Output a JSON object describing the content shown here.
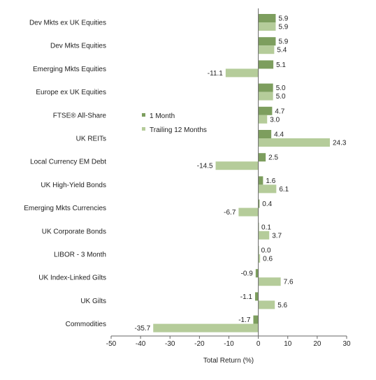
{
  "chart_data": {
    "type": "bar",
    "orientation": "horizontal",
    "categories": [
      "Dev Mkts ex UK Equities",
      "Dev Mkts Equities",
      "Emerging Mkts Equities",
      "Europe ex UK Equities",
      "FTSE® All-Share",
      "UK REITs",
      "Local Currency EM Debt",
      "UK High-Yield Bonds",
      "Emerging Mkts Currencies",
      "UK Corporate Bonds",
      "LIBOR - 3 Month",
      "UK Index-Linked Gilts",
      "UK Gilts",
      "Commodities"
    ],
    "series": [
      {
        "name": "1 Month",
        "color": "#7d9e5e",
        "values": [
          5.9,
          5.9,
          5.1,
          5.0,
          4.7,
          4.4,
          2.5,
          1.6,
          0.4,
          0.1,
          0.0,
          -0.9,
          -1.1,
          -1.7
        ],
        "labels": [
          "5.9",
          "5.9",
          "5.1",
          "5.0",
          "4.7",
          "4.4",
          "2.5",
          "1.6",
          "0.4",
          "0.1",
          "0.0",
          "-0.9",
          "-1.1",
          "-1.7"
        ]
      },
      {
        "name": "Trailing 12 Months",
        "color": "#b5cc9a",
        "values": [
          5.9,
          5.4,
          -11.1,
          5.0,
          3.0,
          24.3,
          -14.5,
          6.1,
          -6.7,
          3.7,
          0.6,
          7.6,
          5.6,
          -35.7
        ],
        "labels": [
          "5.9",
          "5.4",
          "-11.1",
          "5.0",
          "3.0",
          "24.3",
          "-14.5",
          "6.1",
          "-6.7",
          "3.7",
          "0.6",
          "7.6",
          "5.6",
          "-35.7"
        ]
      }
    ],
    "xlabel": "Total Return (%)",
    "xlim": [
      -50,
      30
    ],
    "xticks": [
      "-50",
      "-40",
      "-30",
      "-20",
      "-10",
      "0",
      "10",
      "20",
      "30"
    ],
    "grid": false,
    "legend": "left-middle"
  }
}
